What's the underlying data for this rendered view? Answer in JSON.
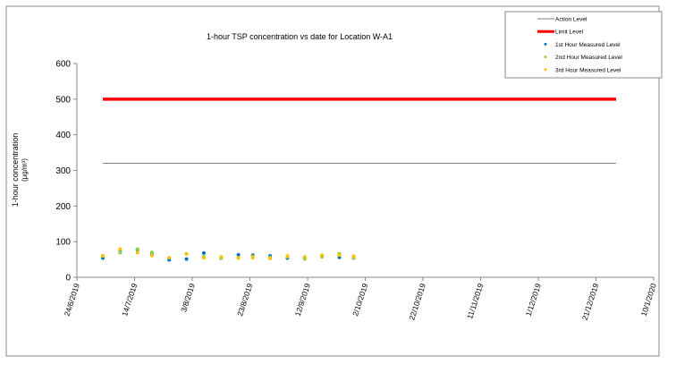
{
  "chart_data": {
    "type": "scatter",
    "title": "1-hour TSP concentration vs date for Location W-A1",
    "ylabel_line1": "1-hour concentration",
    "ylabel_line2": "(µg/m³)",
    "xlabel": "",
    "ylim": [
      0,
      600
    ],
    "yticks": [
      0,
      100,
      200,
      300,
      400,
      500,
      600
    ],
    "xlim": [
      "2019-06-24",
      "2020-01-10"
    ],
    "xtick_labels": [
      "24/6/2019",
      "14/7/2019",
      "3/8/2019",
      "23/8/2019",
      "12/9/2019",
      "2/10/2019",
      "22/10/2019",
      "11/11/2019",
      "1/12/2019",
      "21/12/2019",
      "10/1/2020"
    ],
    "xticks": [
      "2019-06-24",
      "2019-07-14",
      "2019-08-03",
      "2019-08-23",
      "2019-09-12",
      "2019-10-02",
      "2019-10-22",
      "2019-11-11",
      "2019-12-01",
      "2019-12-21",
      "2020-01-10"
    ],
    "grid": false,
    "legend_placement": "top-right",
    "lines": [
      {
        "name": "Action Level",
        "value": 320,
        "x": [
          "2019-07-03",
          "2019-12-28"
        ],
        "color": "#808080"
      },
      {
        "name": "Limit Level",
        "value": 500,
        "x": [
          "2019-07-03",
          "2019-12-28"
        ],
        "color": "#ff0000"
      }
    ],
    "x": [
      "2019-07-03",
      "2019-07-09",
      "2019-07-15",
      "2019-07-20",
      "2019-07-26",
      "2019-08-01",
      "2019-08-07",
      "2019-08-13",
      "2019-08-19",
      "2019-08-24",
      "2019-08-30",
      "2019-09-05",
      "2019-09-11",
      "2019-09-17",
      "2019-09-23",
      "2019-09-28"
    ],
    "series": [
      {
        "name": "1st Hour Measured Level",
        "color": "#0070c0",
        "values": [
          54,
          72,
          77,
          66,
          49,
          51,
          68,
          54,
          63,
          62,
          60,
          54,
          54,
          59,
          56,
          54
        ]
      },
      {
        "name": "2nd Hour Measured Level",
        "color": "#92d050",
        "values": [
          60,
          69,
          79,
          70,
          55,
          66,
          59,
          53,
          54,
          59,
          56,
          57,
          51,
          57,
          66,
          54
        ]
      },
      {
        "name": "3rd Hour Measured Level",
        "color": "#ffc000",
        "values": [
          60,
          79,
          69,
          61,
          55,
          66,
          55,
          57,
          55,
          55,
          53,
          60,
          57,
          62,
          62,
          59
        ]
      }
    ]
  }
}
